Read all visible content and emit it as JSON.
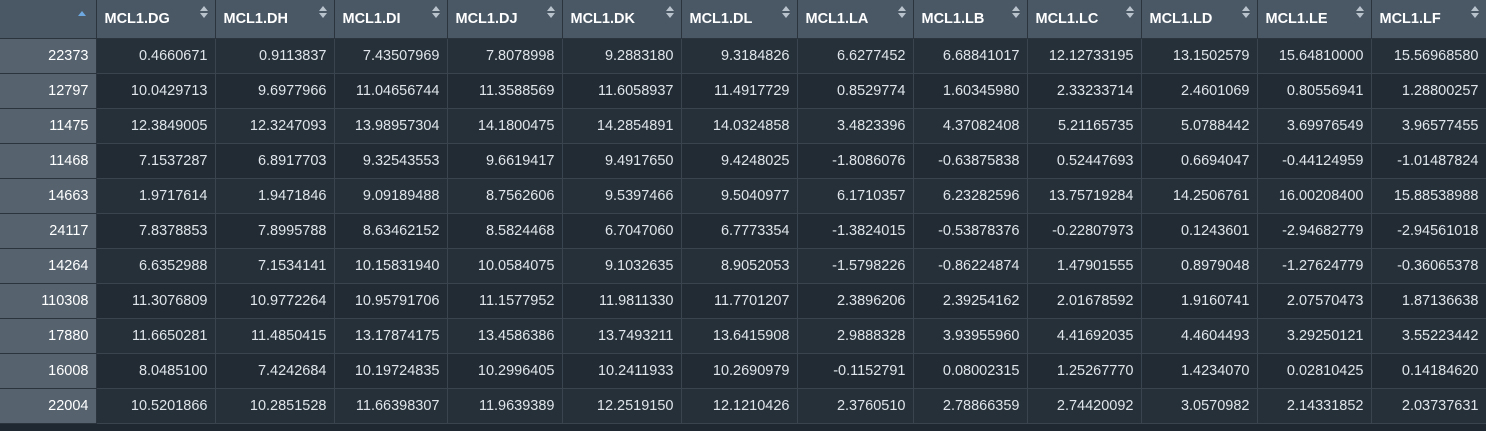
{
  "table": {
    "columns": [
      "MCL1.DG",
      "MCL1.DH",
      "MCL1.DI",
      "MCL1.DJ",
      "MCL1.DK",
      "MCL1.DL",
      "MCL1.LA",
      "MCL1.LB",
      "MCL1.LC",
      "MCL1.LD",
      "MCL1.LE",
      "MCL1.LF"
    ],
    "rows": [
      {
        "name": "22373",
        "cells": [
          "0.4660671",
          "0.9113837",
          "7.43507969",
          "7.8078998",
          "9.2883180",
          "9.3184826",
          "6.6277452",
          "6.68841017",
          "12.12733195",
          "13.1502579",
          "15.64810000",
          "15.56968580"
        ]
      },
      {
        "name": "12797",
        "cells": [
          "10.0429713",
          "9.6977966",
          "11.04656744",
          "11.3588569",
          "11.6058937",
          "11.4917729",
          "0.8529774",
          "1.60345980",
          "2.33233714",
          "2.4601069",
          "0.80556941",
          "1.28800257"
        ]
      },
      {
        "name": "11475",
        "cells": [
          "12.3849005",
          "12.3247093",
          "13.98957304",
          "14.1800475",
          "14.2854891",
          "14.0324858",
          "3.4823396",
          "4.37082408",
          "5.21165735",
          "5.0788442",
          "3.69976549",
          "3.96577455"
        ]
      },
      {
        "name": "11468",
        "cells": [
          "7.1537287",
          "6.8917703",
          "9.32543553",
          "9.6619417",
          "9.4917650",
          "9.4248025",
          "-1.8086076",
          "-0.63875838",
          "0.52447693",
          "0.6694047",
          "-0.44124959",
          "-1.01487824"
        ]
      },
      {
        "name": "14663",
        "cells": [
          "1.9717614",
          "1.9471846",
          "9.09189488",
          "8.7562606",
          "9.5397466",
          "9.5040977",
          "6.1710357",
          "6.23282596",
          "13.75719284",
          "14.2506761",
          "16.00208400",
          "15.88538988"
        ]
      },
      {
        "name": "24117",
        "cells": [
          "7.8378853",
          "7.8995788",
          "8.63462152",
          "8.5824468",
          "6.7047060",
          "6.7773354",
          "-1.3824015",
          "-0.53878376",
          "-0.22807973",
          "0.1243601",
          "-2.94682779",
          "-2.94561018"
        ]
      },
      {
        "name": "14264",
        "cells": [
          "6.6352988",
          "7.1534141",
          "10.15831940",
          "10.0584075",
          "9.1032635",
          "8.9052053",
          "-1.5798226",
          "-0.86224874",
          "1.47901555",
          "0.8979048",
          "-1.27624779",
          "-0.36065378"
        ]
      },
      {
        "name": "110308",
        "cells": [
          "11.3076809",
          "10.9772264",
          "10.95791706",
          "11.1577952",
          "11.9811330",
          "11.7701207",
          "2.3896206",
          "2.39254162",
          "2.01678592",
          "1.9160741",
          "2.07570473",
          "1.87136638"
        ]
      },
      {
        "name": "17880",
        "cells": [
          "11.6650281",
          "11.4850415",
          "13.17874175",
          "13.4586386",
          "13.7493211",
          "13.6415908",
          "2.9888328",
          "3.93955960",
          "4.41692035",
          "4.4604493",
          "3.29250121",
          "3.55223442"
        ]
      },
      {
        "name": "16008",
        "cells": [
          "8.0485100",
          "7.4242684",
          "10.19724835",
          "10.2996405",
          "10.2411933",
          "10.2690979",
          "-0.1152791",
          "0.08002315",
          "1.25267770",
          "1.4234070",
          "0.02810425",
          "0.14184620"
        ]
      },
      {
        "name": "22004",
        "cells": [
          "10.5201866",
          "10.2851528",
          "11.66398307",
          "11.9639389",
          "12.2519150",
          "12.1210426",
          "2.3760510",
          "2.78866359",
          "2.74420092",
          "3.0570982",
          "2.14331852",
          "2.03737631"
        ]
      }
    ]
  }
}
